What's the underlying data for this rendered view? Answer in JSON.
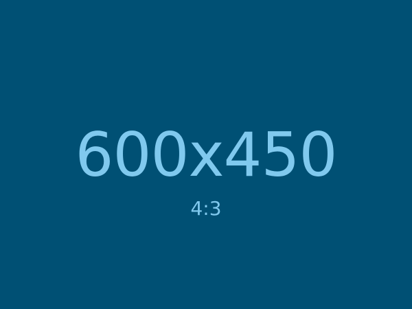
{
  "placeholder": {
    "dimensions_text": "600x450",
    "ratio_text": "4:3",
    "background_color": "#005074",
    "text_color": "#80C9EE"
  }
}
